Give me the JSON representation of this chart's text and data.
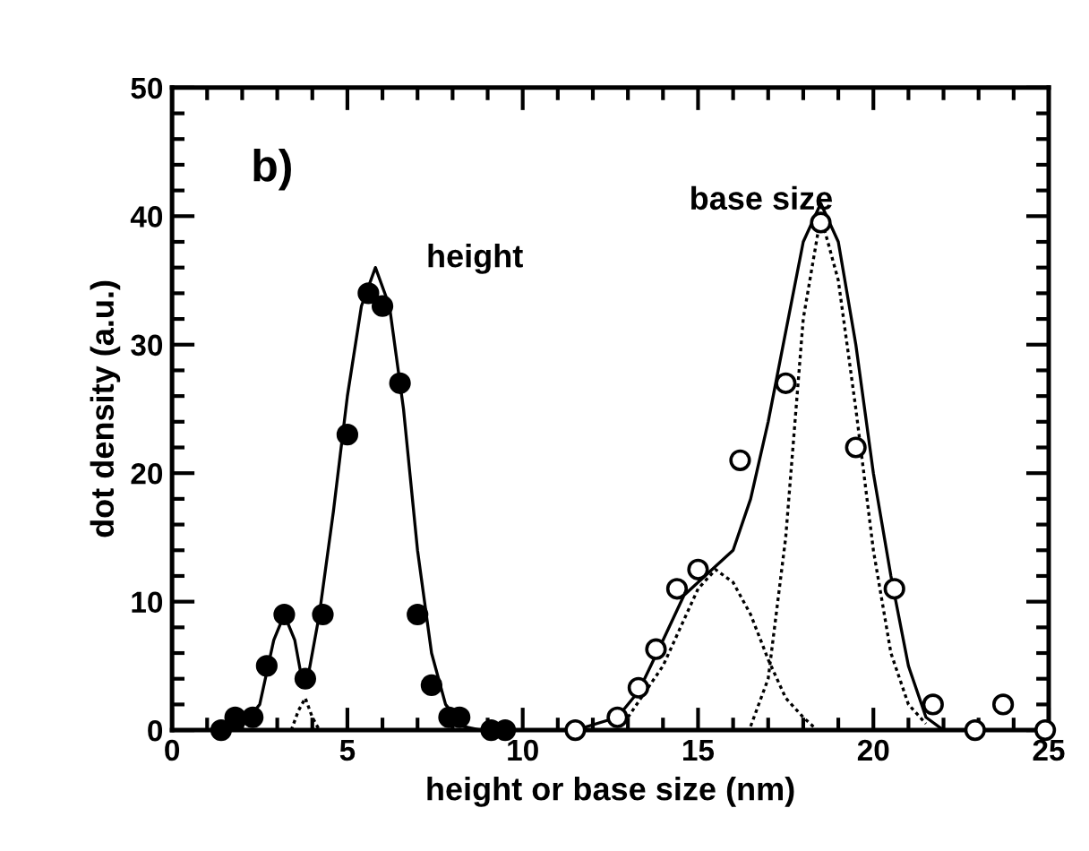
{
  "chart_data": {
    "type": "line",
    "xlabel": "height or base size (nm)",
    "ylabel": "dot density (a.u.)",
    "xlim": [
      0,
      25
    ],
    "ylim": [
      0,
      50
    ],
    "xticks": [
      0,
      5,
      10,
      15,
      20,
      25
    ],
    "yticks": [
      0,
      10,
      20,
      30,
      40,
      50
    ],
    "grid": false,
    "legend": false,
    "annotations": [
      "b)",
      "height",
      "base size"
    ],
    "series": [
      {
        "color": "#000000",
        "line_style": "solid",
        "marker": "none",
        "x": [
          1.5,
          2.0,
          2.5,
          2.9,
          3.2,
          3.5,
          3.7,
          3.9,
          4.2,
          4.6,
          5.0,
          5.4,
          5.8,
          6.2,
          6.6,
          7.0,
          7.4,
          7.8,
          8.3,
          8.8
        ],
        "values": [
          0,
          0.3,
          2,
          7,
          9,
          7,
          4,
          4.5,
          9,
          17,
          26,
          33,
          36,
          33,
          25,
          14,
          6,
          2,
          0.3,
          0
        ]
      },
      {
        "color": "#000000",
        "line_style": "solid",
        "marker": "none",
        "x": [
          11.5,
          12.7,
          13.3,
          14.0,
          14.6,
          15.4,
          16.0,
          16.5,
          17.0,
          17.5,
          18.0,
          18.5,
          19.0,
          19.5,
          20.0,
          20.5,
          21.0,
          21.5,
          22.0
        ],
        "values": [
          0,
          1,
          3,
          7,
          10.5,
          12.5,
          14,
          18,
          24,
          31,
          38,
          41,
          38,
          30,
          20,
          12,
          5,
          1,
          0
        ]
      },
      {
        "color": "#000000",
        "line_style": "dotted",
        "marker": "none",
        "x": [
          13.0,
          14.0,
          15.0,
          15.5,
          16.0,
          16.5,
          17.0,
          17.5,
          18.0,
          18.4
        ],
        "values": [
          1,
          5,
          11,
          12.5,
          11.5,
          9,
          5.5,
          2.5,
          1,
          0
        ]
      },
      {
        "color": "#000000",
        "line_style": "dotted",
        "marker": "none",
        "x": [
          16.5,
          17.0,
          17.5,
          18.0,
          18.5,
          19.0,
          19.5,
          20.0,
          20.5,
          21.0,
          21.5
        ],
        "values": [
          0.3,
          4,
          15,
          32,
          40,
          35,
          25,
          14,
          6,
          2,
          0.5
        ]
      },
      {
        "color": "#000000",
        "line_style": "dotted",
        "marker": "none",
        "x": [
          3.4,
          3.6,
          3.8,
          4.0,
          4.2
        ],
        "values": [
          0,
          1.5,
          2.5,
          1,
          0
        ]
      },
      {
        "type": "scatter",
        "color": "#000000",
        "marker": "circle",
        "x": [
          1.4,
          1.8,
          2.3,
          2.7,
          3.2,
          3.8,
          4.3,
          5.0,
          5.6,
          6.0,
          6.5,
          7.0,
          7.4,
          7.9,
          8.2,
          9.1,
          9.5
        ],
        "values": [
          0,
          1,
          1,
          5,
          9,
          4,
          9,
          23,
          34,
          33,
          27,
          9,
          3.5,
          1,
          1,
          0,
          0
        ]
      },
      {
        "type": "scatter",
        "color": "#ffffff",
        "marker": "circle",
        "x": [
          11.5,
          12.7,
          13.3,
          13.8,
          14.4,
          15.0,
          16.2,
          17.5,
          18.5,
          19.5,
          20.6,
          21.7,
          22.9,
          23.7,
          24.9
        ],
        "values": [
          0,
          1,
          3.3,
          6.3,
          11,
          12.5,
          21,
          27,
          39.5,
          22,
          11,
          2,
          0,
          2,
          0
        ]
      }
    ]
  }
}
